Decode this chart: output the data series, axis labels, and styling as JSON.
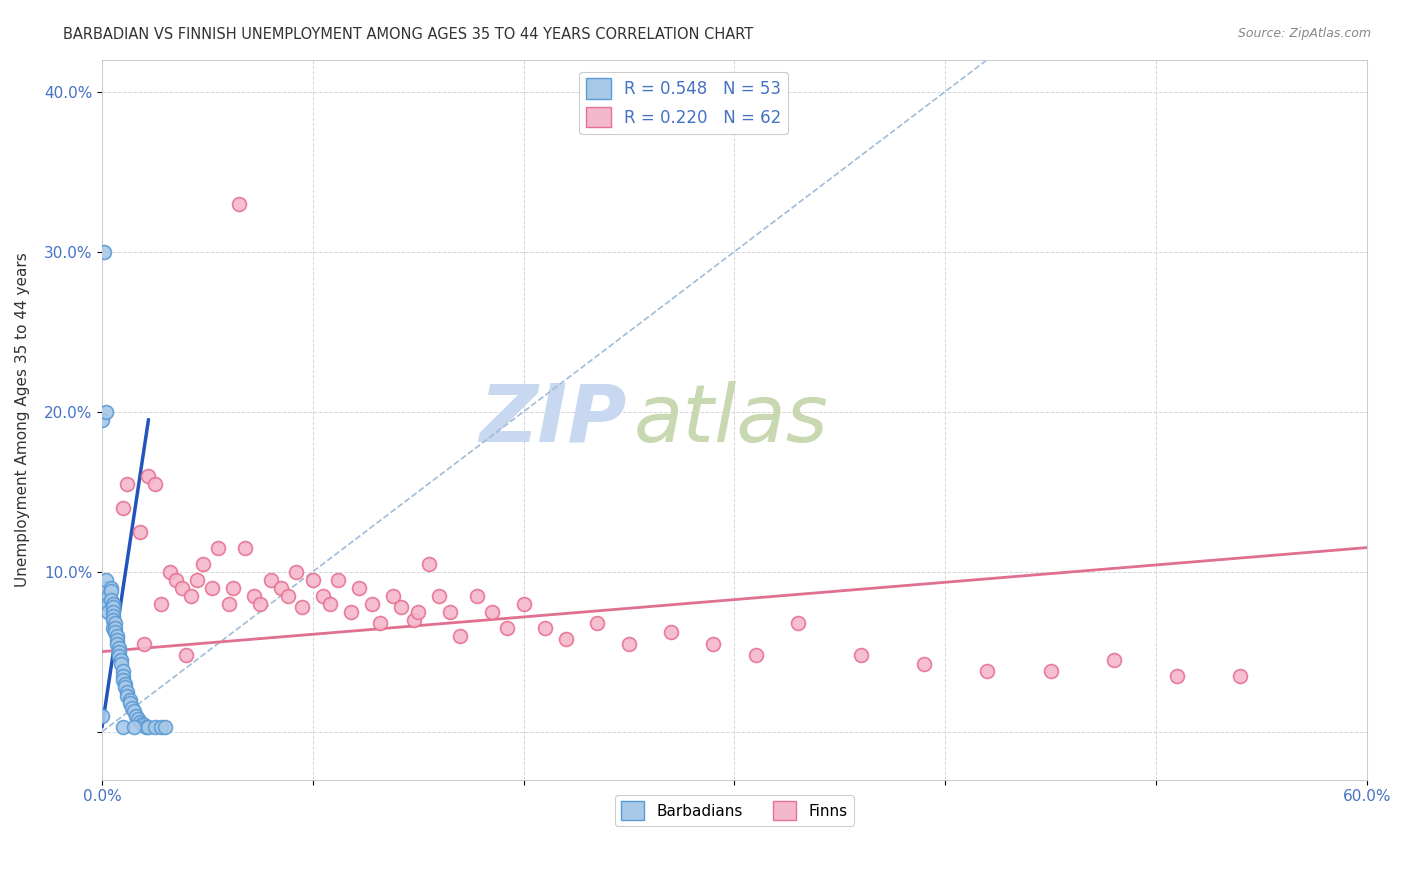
{
  "title": "BARBADIAN VS FINNISH UNEMPLOYMENT AMONG AGES 35 TO 44 YEARS CORRELATION CHART",
  "source": "Source: ZipAtlas.com",
  "ylabel": "Unemployment Among Ages 35 to 44 years",
  "xlim": [
    0.0,
    0.6
  ],
  "ylim": [
    -0.03,
    0.42
  ],
  "yticks": [
    0.0,
    0.1,
    0.2,
    0.3,
    0.4
  ],
  "ytick_labels": [
    "",
    "10.0%",
    "20.0%",
    "30.0%",
    "40.0%"
  ],
  "xticks": [
    0.0,
    0.1,
    0.2,
    0.3,
    0.4,
    0.5,
    0.6
  ],
  "xtick_labels": [
    "0.0%",
    "",
    "",
    "",
    "",
    "",
    "60.0%"
  ],
  "barbadian_color": "#a8c8e8",
  "barbadian_edge": "#5b9bd5",
  "finnish_color": "#f4b8cc",
  "finnish_edge": "#e87090",
  "blue_line_color": "#2255bb",
  "pink_line_color": "#e07090",
  "dash_line_color": "#a0bcd8",
  "watermark_zip_color": "#c8d8ee",
  "watermark_atlas_color": "#c8d8b8",
  "background_color": "#ffffff",
  "grid_color": "#cccccc",
  "tick_color": "#4472c4",
  "title_color": "#333333",
  "source_color": "#888888",
  "barbadian_scatter_x": [
    0.0,
    0.0,
    0.001,
    0.002,
    0.002,
    0.003,
    0.003,
    0.003,
    0.004,
    0.004,
    0.004,
    0.005,
    0.005,
    0.005,
    0.005,
    0.005,
    0.005,
    0.006,
    0.006,
    0.006,
    0.007,
    0.007,
    0.007,
    0.008,
    0.008,
    0.008,
    0.009,
    0.009,
    0.01,
    0.01,
    0.01,
    0.011,
    0.011,
    0.012,
    0.012,
    0.013,
    0.013,
    0.014,
    0.015,
    0.016,
    0.017,
    0.018,
    0.019,
    0.02,
    0.021,
    0.022,
    0.025,
    0.028,
    0.03,
    0.001,
    0.002,
    0.01,
    0.015
  ],
  "barbadian_scatter_y": [
    0.195,
    0.01,
    0.085,
    0.09,
    0.095,
    0.085,
    0.08,
    0.075,
    0.09,
    0.088,
    0.082,
    0.08,
    0.078,
    0.075,
    0.072,
    0.07,
    0.065,
    0.068,
    0.065,
    0.062,
    0.06,
    0.057,
    0.055,
    0.052,
    0.05,
    0.047,
    0.045,
    0.042,
    0.038,
    0.035,
    0.032,
    0.03,
    0.028,
    0.025,
    0.022,
    0.02,
    0.018,
    0.015,
    0.013,
    0.01,
    0.008,
    0.006,
    0.005,
    0.004,
    0.003,
    0.003,
    0.003,
    0.003,
    0.003,
    0.3,
    0.2,
    0.003,
    0.003
  ],
  "finnish_scatter_x": [
    0.01,
    0.012,
    0.018,
    0.022,
    0.025,
    0.028,
    0.032,
    0.035,
    0.038,
    0.042,
    0.045,
    0.048,
    0.052,
    0.055,
    0.06,
    0.062,
    0.068,
    0.072,
    0.075,
    0.08,
    0.085,
    0.088,
    0.092,
    0.095,
    0.1,
    0.105,
    0.108,
    0.112,
    0.118,
    0.122,
    0.128,
    0.132,
    0.138,
    0.142,
    0.148,
    0.155,
    0.16,
    0.165,
    0.17,
    0.178,
    0.185,
    0.192,
    0.2,
    0.21,
    0.22,
    0.235,
    0.25,
    0.27,
    0.29,
    0.31,
    0.33,
    0.36,
    0.39,
    0.42,
    0.45,
    0.48,
    0.51,
    0.54,
    0.02,
    0.04,
    0.065,
    0.15
  ],
  "finnish_scatter_y": [
    0.14,
    0.155,
    0.125,
    0.16,
    0.155,
    0.08,
    0.1,
    0.095,
    0.09,
    0.085,
    0.095,
    0.105,
    0.09,
    0.115,
    0.08,
    0.09,
    0.115,
    0.085,
    0.08,
    0.095,
    0.09,
    0.085,
    0.1,
    0.078,
    0.095,
    0.085,
    0.08,
    0.095,
    0.075,
    0.09,
    0.08,
    0.068,
    0.085,
    0.078,
    0.07,
    0.105,
    0.085,
    0.075,
    0.06,
    0.085,
    0.075,
    0.065,
    0.08,
    0.065,
    0.058,
    0.068,
    0.055,
    0.062,
    0.055,
    0.048,
    0.068,
    0.048,
    0.042,
    0.038,
    0.038,
    0.045,
    0.035,
    0.035,
    0.055,
    0.048,
    0.33,
    0.075
  ],
  "blue_trendline_x": [
    0.0,
    0.022
  ],
  "blue_trendline_y": [
    0.003,
    0.195
  ],
  "pink_trendline_x": [
    0.0,
    0.6
  ],
  "pink_trendline_y": [
    0.05,
    0.115
  ],
  "dash_line_x": [
    0.0,
    0.42
  ],
  "dash_line_y": [
    0.0,
    0.42
  ]
}
